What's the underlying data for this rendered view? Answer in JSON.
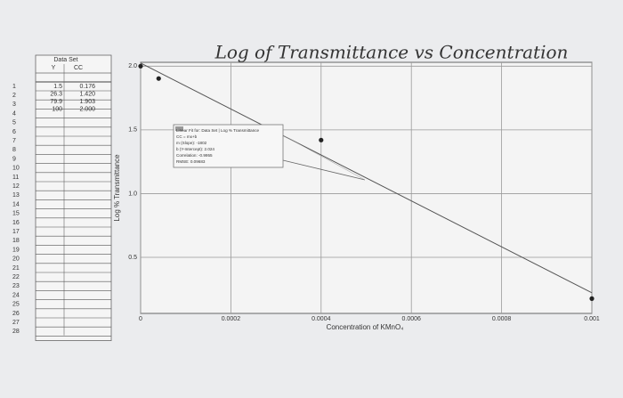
{
  "chart_data": {
    "type": "scatter",
    "title": "Log of Transmittance vs Concentration",
    "x_label": "Concentration of KMnO₄",
    "y_label": "Log % Transmittance",
    "x": [
      0,
      4e-05,
      0.0004,
      0.001
    ],
    "y": [
      2.0,
      1.903,
      1.42,
      0.176
    ],
    "color": "#222222",
    "fit": {
      "slope": -1802,
      "intercept": 2.024,
      "color": "#555555"
    },
    "annotation": [
      "Linear Fit for: Data Set | Log % Transmittance",
      "CC = mx+b",
      "m (Slope): -1802",
      "b (Y-Intercept): 2.024",
      "Correlation: -0.9955",
      "RMSE: 0.09683"
    ],
    "xlim": [
      0,
      0.001
    ],
    "ylim": [
      0.06,
      2.03
    ],
    "xticks": [
      0,
      0.0002,
      0.0004,
      0.0006,
      0.0008,
      0.001
    ],
    "yticks": [
      0.5,
      {
        "value": 1,
        "label": "1.0"
      },
      1.5,
      {
        "value": 2,
        "label": "2.0"
      }
    ],
    "grid": true
  },
  "table": {
    "title": "Data Set",
    "columns": [
      "Y",
      "CC"
    ],
    "rows": [
      [
        "1.5",
        "0.176"
      ],
      [
        "26.3",
        "1.420"
      ],
      [
        "79.9",
        "1.903"
      ],
      [
        "100",
        "2.000"
      ]
    ],
    "row_numbers": [
      1,
      2,
      3,
      4,
      5,
      6,
      7,
      8,
      9,
      10,
      11,
      12,
      13,
      14,
      15,
      16,
      17,
      18,
      19,
      20,
      21,
      22,
      23,
      24,
      25,
      26,
      27,
      28
    ]
  }
}
